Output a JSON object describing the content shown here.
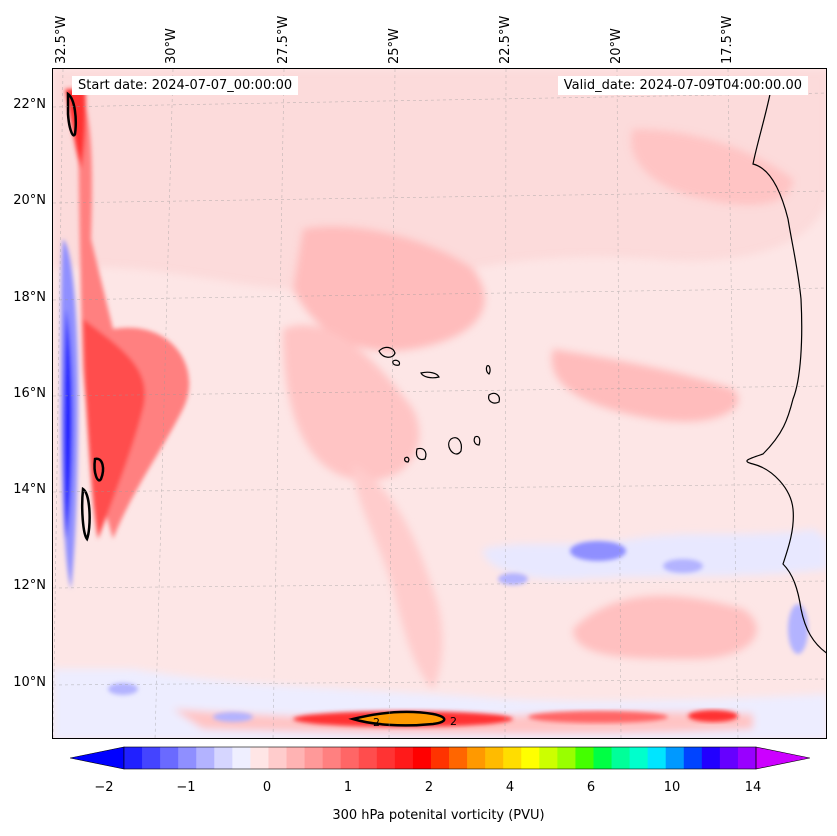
{
  "map": {
    "start_date": "Start date: 2024-07-07_00:00:00",
    "valid_date": "Valid_date: 2024-07-09T04:00:00.00",
    "lon_labels": [
      "32.5°W",
      "30°W",
      "27.5°W",
      "25°W",
      "22.5°W",
      "20°W",
      "17.5°W"
    ],
    "lat_labels": [
      "22°N",
      "20°N",
      "18°N",
      "16°N",
      "14°N",
      "12°N",
      "10°N"
    ],
    "contour_label": "2",
    "projection_extent": {
      "lon_west": -33.0,
      "lon_east": -15.5,
      "lat_south": 8.9,
      "lat_north": 22.8
    }
  },
  "colorbar": {
    "title": "300 hPa potenital vorticity (PVU)",
    "ticks": [
      "−2",
      "−1",
      "0",
      "1",
      "2",
      "4",
      "6",
      "10",
      "14"
    ],
    "colors": [
      "#0000ff",
      "#2020ff",
      "#4444ff",
      "#6a6aff",
      "#8f8fff",
      "#b3b3ff",
      "#d6d6ff",
      "#efefff",
      "#ffe6e6",
      "#ffcccc",
      "#ffb3b3",
      "#ff9999",
      "#ff8080",
      "#ff6666",
      "#ff4d4d",
      "#ff3333",
      "#ff1a1a",
      "#ff0000",
      "#ff3300",
      "#ff6600",
      "#ff9900",
      "#ffbb00",
      "#ffdd00",
      "#ffff00",
      "#ccff00",
      "#99ff00",
      "#44ff00",
      "#00ff44",
      "#00ff99",
      "#00ffcc",
      "#00e5ff",
      "#0099ff",
      "#0044ff",
      "#2200ff",
      "#6600ff",
      "#9900ff",
      "#cc00ff"
    ]
  }
}
